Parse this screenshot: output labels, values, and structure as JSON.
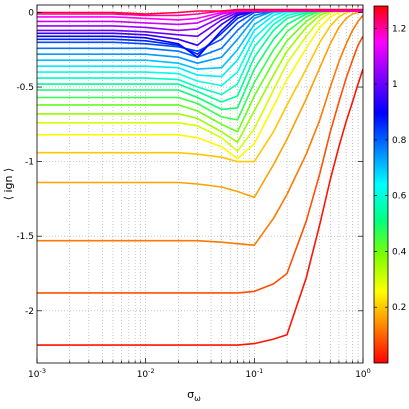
{
  "chart_data": {
    "type": "line",
    "xlabel": "σ",
    "xlabel_sub": "ω",
    "ylabel": "⟨ ign ⟩",
    "xscale": "log",
    "xlim": [
      0.001,
      1
    ],
    "ylim": [
      -2.35,
      0.05
    ],
    "grid": true,
    "x_ticks": [
      {
        "v": 0.001,
        "base": "10",
        "exp": "-3"
      },
      {
        "v": 0.01,
        "base": "10",
        "exp": "-2"
      },
      {
        "v": 0.1,
        "base": "10",
        "exp": "-1"
      },
      {
        "v": 1,
        "base": "10",
        "exp": "0"
      }
    ],
    "y_ticks": [
      {
        "v": 0,
        "label": "0"
      },
      {
        "v": -0.5,
        "label": "-0.5"
      },
      {
        "v": -1,
        "label": "-1"
      },
      {
        "v": -1.5,
        "label": "-1.5"
      },
      {
        "v": -2,
        "label": "-2"
      }
    ],
    "colorbar": {
      "range": [
        0,
        1.28
      ],
      "ticks": [
        {
          "v": 0.2,
          "label": "0.2"
        },
        {
          "v": 0.4,
          "label": "0.4"
        },
        {
          "v": 0.6,
          "label": "0.6"
        },
        {
          "v": 0.8,
          "label": "0.8"
        },
        {
          "v": 1.0,
          "label": "1"
        },
        {
          "v": 1.2,
          "label": "1.2"
        }
      ],
      "colormap": [
        "#ff0000",
        "#ff8000",
        "#ffff00",
        "#80ff00",
        "#00ff80",
        "#00ffff",
        "#0080ff",
        "#0000ff",
        "#8000ff",
        "#ff00ff",
        "#ff0000"
      ]
    },
    "series_params": [
      0.02,
      0.08,
      0.12,
      0.16,
      0.2,
      0.25,
      0.3,
      0.36,
      0.41,
      0.46,
      0.5,
      0.54,
      0.58,
      0.62,
      0.66,
      0.7,
      0.74,
      0.78,
      0.82,
      0.86,
      0.9,
      0.95,
      1.0,
      1.05,
      1.1,
      1.15,
      1.2,
      1.25
    ],
    "series_x": [
      0.001,
      0.002,
      0.005,
      0.01,
      0.02,
      0.03,
      0.05,
      0.07,
      0.1,
      0.15,
      0.2,
      0.3,
      0.4,
      0.5,
      0.6,
      0.7,
      0.8,
      0.9,
      1.0
    ],
    "series": [
      {
        "y": [
          -2.23,
          -2.23,
          -2.23,
          -2.23,
          -2.23,
          -2.23,
          -2.23,
          -2.23,
          -2.22,
          -2.19,
          -2.16,
          -1.78,
          -1.42,
          -1.12,
          -0.9,
          -0.73,
          -0.6,
          -0.48,
          -0.38
        ]
      },
      {
        "y": [
          -1.88,
          -1.88,
          -1.88,
          -1.88,
          -1.88,
          -1.88,
          -1.88,
          -1.88,
          -1.87,
          -1.82,
          -1.75,
          -1.4,
          -1.08,
          -0.8,
          -0.6,
          -0.44,
          -0.32,
          -0.22,
          -0.16
        ]
      },
      {
        "y": [
          -1.53,
          -1.53,
          -1.53,
          -1.53,
          -1.53,
          -1.53,
          -1.54,
          -1.55,
          -1.56,
          -1.38,
          -1.22,
          -0.95,
          -0.72,
          -0.5,
          -0.33,
          -0.21,
          -0.12,
          -0.06,
          -0.02
        ]
      },
      {
        "y": [
          -1.14,
          -1.14,
          -1.14,
          -1.14,
          -1.14,
          -1.15,
          -1.17,
          -1.2,
          -1.24,
          -1.02,
          -0.85,
          -0.58,
          -0.37,
          -0.21,
          -0.1,
          -0.04,
          -0.01,
          0.0,
          0.01
        ]
      },
      {
        "y": [
          -0.94,
          -0.94,
          -0.94,
          -0.94,
          -0.94,
          -0.95,
          -0.97,
          -1.0,
          -1.0,
          -0.8,
          -0.62,
          -0.38,
          -0.2,
          -0.09,
          -0.03,
          0.0,
          0.01,
          0.01,
          0.01
        ]
      },
      {
        "y": [
          -0.82,
          -0.82,
          -0.82,
          -0.82,
          -0.82,
          -0.84,
          -0.9,
          -0.98,
          -0.88,
          -0.63,
          -0.45,
          -0.24,
          -0.1,
          -0.03,
          0.0,
          0.01,
          0.01,
          0.01,
          0.01
        ]
      },
      {
        "y": [
          -0.74,
          -0.74,
          -0.74,
          -0.74,
          -0.74,
          -0.76,
          -0.84,
          -0.93,
          -0.78,
          -0.52,
          -0.34,
          -0.16,
          -0.05,
          0.0,
          0.01,
          0.01,
          0.01,
          0.01,
          0.01
        ]
      },
      {
        "y": [
          -0.68,
          -0.68,
          -0.68,
          -0.68,
          -0.68,
          -0.71,
          -0.8,
          -0.87,
          -0.66,
          -0.42,
          -0.26,
          -0.1,
          -0.02,
          0.01,
          0.01,
          0.01,
          0.01,
          0.01,
          0.01
        ]
      },
      {
        "y": [
          -0.62,
          -0.62,
          -0.62,
          -0.62,
          -0.62,
          -0.66,
          -0.75,
          -0.8,
          -0.56,
          -0.33,
          -0.19,
          -0.06,
          0.0,
          0.01,
          0.01,
          0.01,
          0.01,
          0.01,
          0.01
        ]
      },
      {
        "y": [
          -0.57,
          -0.57,
          -0.57,
          -0.57,
          -0.57,
          -0.61,
          -0.7,
          -0.72,
          -0.47,
          -0.25,
          -0.13,
          -0.03,
          0.01,
          0.01,
          0.01,
          0.01,
          0.01,
          0.01,
          0.01
        ]
      },
      {
        "y": [
          -0.52,
          -0.52,
          -0.52,
          -0.52,
          -0.52,
          -0.57,
          -0.65,
          -0.64,
          -0.38,
          -0.18,
          -0.08,
          -0.01,
          0.01,
          0.01,
          0.01,
          0.01,
          0.01,
          0.01,
          0.01
        ]
      },
      {
        "y": [
          -0.48,
          -0.48,
          -0.48,
          -0.48,
          -0.48,
          -0.53,
          -0.6,
          -0.56,
          -0.3,
          -0.12,
          -0.04,
          0.0,
          0.01,
          0.01,
          0.01,
          0.01,
          0.01,
          0.01,
          0.01
        ]
      },
      {
        "y": [
          -0.44,
          -0.44,
          -0.44,
          -0.44,
          -0.45,
          -0.5,
          -0.55,
          -0.48,
          -0.23,
          -0.08,
          -0.02,
          0.01,
          0.01,
          0.01,
          0.01,
          0.01,
          0.01,
          0.01,
          0.01
        ]
      },
      {
        "y": [
          -0.4,
          -0.4,
          -0.4,
          -0.4,
          -0.41,
          -0.46,
          -0.49,
          -0.4,
          -0.17,
          -0.05,
          0.0,
          0.01,
          0.01,
          0.01,
          0.01,
          0.01,
          0.01,
          0.01,
          0.01
        ]
      },
      {
        "y": [
          -0.36,
          -0.36,
          -0.36,
          -0.36,
          -0.37,
          -0.42,
          -0.43,
          -0.32,
          -0.12,
          -0.02,
          0.01,
          0.01,
          0.01,
          0.01,
          0.01,
          0.01,
          0.01,
          0.01,
          0.01
        ]
      },
      {
        "y": [
          -0.32,
          -0.32,
          -0.32,
          -0.32,
          -0.34,
          -0.38,
          -0.37,
          -0.25,
          -0.08,
          0.0,
          0.01,
          0.01,
          0.01,
          0.01,
          0.01,
          0.01,
          0.01,
          0.01,
          0.01
        ]
      },
      {
        "y": [
          -0.28,
          -0.28,
          -0.28,
          -0.28,
          -0.3,
          -0.34,
          -0.3,
          -0.18,
          -0.04,
          0.01,
          0.01,
          0.01,
          0.01,
          0.01,
          0.01,
          0.01,
          0.01,
          0.01,
          0.01
        ]
      },
      {
        "y": [
          -0.24,
          -0.24,
          -0.24,
          -0.24,
          -0.26,
          -0.3,
          -0.24,
          -0.12,
          -0.02,
          0.01,
          0.01,
          0.01,
          0.01,
          0.01,
          0.01,
          0.01,
          0.01,
          0.01,
          0.01
        ]
      },
      {
        "y": [
          -0.2,
          -0.2,
          -0.2,
          -0.21,
          -0.23,
          -0.26,
          -0.18,
          -0.07,
          0.0,
          0.01,
          0.01,
          0.01,
          0.01,
          0.01,
          0.01,
          0.01,
          0.01,
          0.01,
          0.01
        ]
      },
      {
        "y": [
          -0.18,
          -0.18,
          -0.18,
          -0.19,
          -0.22,
          -0.28,
          -0.14,
          -0.04,
          0.01,
          0.01,
          0.01,
          0.01,
          0.01,
          0.01,
          0.01,
          0.01,
          0.01,
          0.01,
          0.01
        ]
      },
      {
        "y": [
          -0.16,
          -0.16,
          -0.16,
          -0.17,
          -0.21,
          -0.3,
          -0.12,
          -0.02,
          0.01,
          0.01,
          0.01,
          0.01,
          0.01,
          0.01,
          0.01,
          0.01,
          0.01,
          0.01,
          0.01
        ]
      },
      {
        "y": [
          -0.14,
          -0.14,
          -0.14,
          -0.15,
          -0.18,
          -0.22,
          -0.08,
          -0.01,
          0.01,
          0.01,
          0.01,
          0.01,
          0.01,
          0.01,
          0.01,
          0.01,
          0.01,
          0.01,
          0.01
        ]
      },
      {
        "y": [
          -0.12,
          -0.12,
          -0.12,
          -0.13,
          -0.15,
          -0.16,
          -0.05,
          0.0,
          0.01,
          0.01,
          0.01,
          0.01,
          0.01,
          0.01,
          0.01,
          0.01,
          0.01,
          0.01,
          0.01
        ]
      },
      {
        "y": [
          -0.09,
          -0.09,
          -0.09,
          -0.1,
          -0.12,
          -0.11,
          -0.03,
          0.01,
          0.01,
          0.01,
          0.01,
          0.01,
          0.01,
          0.01,
          0.01,
          0.01,
          0.01,
          0.01,
          0.01
        ]
      },
      {
        "y": [
          -0.06,
          -0.06,
          -0.06,
          -0.07,
          -0.08,
          -0.07,
          -0.01,
          0.01,
          0.01,
          0.01,
          0.01,
          0.01,
          0.01,
          0.01,
          0.01,
          0.01,
          0.01,
          0.01,
          0.01
        ]
      },
      {
        "y": [
          -0.03,
          -0.03,
          -0.03,
          -0.04,
          -0.05,
          -0.04,
          0.0,
          0.01,
          0.01,
          0.01,
          0.01,
          0.01,
          0.01,
          0.01,
          0.01,
          0.01,
          0.01,
          0.01,
          0.01
        ]
      },
      {
        "y": [
          -0.01,
          -0.01,
          -0.01,
          -0.02,
          -0.02,
          -0.01,
          0.01,
          0.01,
          0.01,
          0.01,
          0.01,
          0.01,
          0.01,
          0.01,
          0.01,
          0.01,
          0.01,
          0.01,
          0.01
        ]
      },
      {
        "y": [
          0.0,
          0.0,
          0.0,
          -0.01,
          0.0,
          0.01,
          0.01,
          0.02,
          0.02,
          0.02,
          0.02,
          0.02,
          0.02,
          0.02,
          0.02,
          0.02,
          0.02,
          0.02,
          0.02
        ]
      }
    ]
  }
}
